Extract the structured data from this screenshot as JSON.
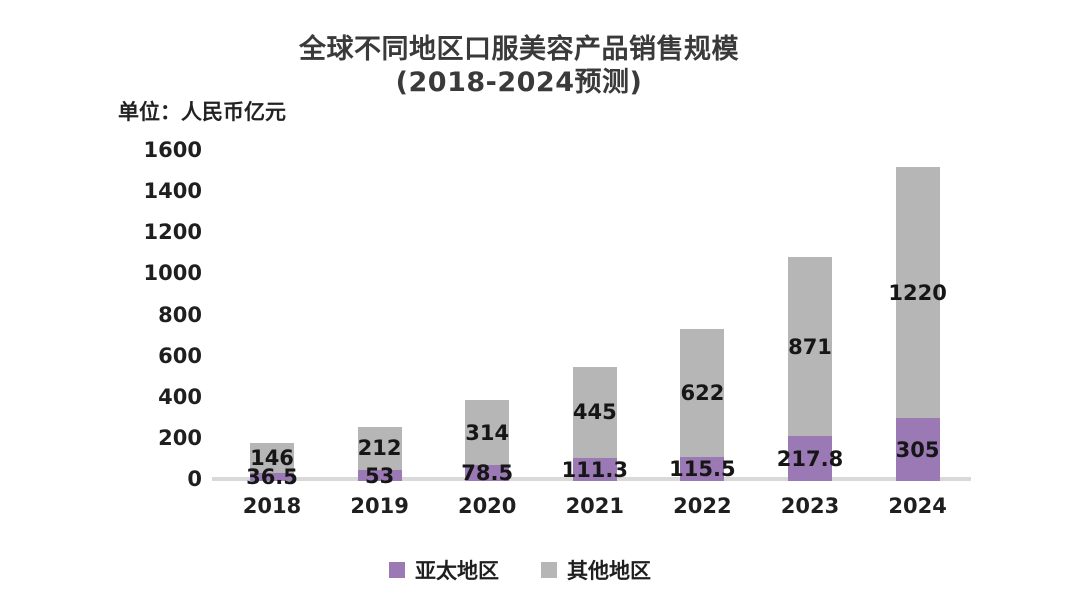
{
  "title": {
    "line1": "全球不同地区口服美容产品销售规模",
    "line2": "(2018-2024预测)"
  },
  "unit_label": "单位：人民币亿元",
  "chart_data": {
    "type": "bar",
    "stacked": true,
    "title": "全球不同地区口服美容产品销售规模 (2018-2024预测)",
    "unit": "单位：人民币亿元",
    "categories": [
      "2018",
      "2019",
      "2020",
      "2021",
      "2022",
      "2023",
      "2024"
    ],
    "series": [
      {
        "name": "亚太地区",
        "color": "#9b79b4",
        "values": [
          36.5,
          53,
          78.5,
          111.3,
          115.5,
          217.8,
          305
        ]
      },
      {
        "name": "其他地区",
        "color": "#b6b6b6",
        "values": [
          146,
          212,
          314,
          445,
          622,
          871,
          1220
        ]
      }
    ],
    "value_labels": {
      "亚太地区": [
        "36.5",
        "53",
        "78.5",
        "111.3",
        "115.5",
        "217.8",
        "305"
      ],
      "其他地区": [
        "146",
        "212",
        "314",
        "445",
        "622",
        "871",
        "1220"
      ]
    },
    "ylim": [
      0,
      1600
    ],
    "yticks": [
      "0",
      "200",
      "400",
      "600",
      "800",
      "1000",
      "1200",
      "1400",
      "1600"
    ],
    "grid": false,
    "legend_position": "bottom",
    "axis_line_color": "#d9d9d9",
    "label_color": "#161616"
  }
}
